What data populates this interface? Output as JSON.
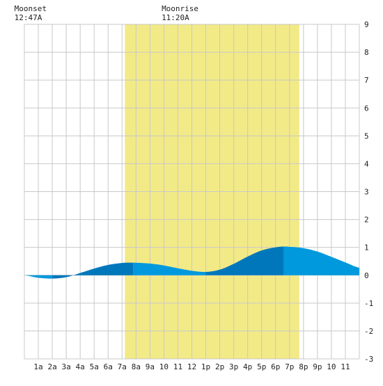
{
  "moon_events": [
    {
      "event": "Moonset",
      "time": "12:47A",
      "hour": 0.78
    },
    {
      "event": "Moonrise",
      "time": "11:20A",
      "hour": 11.33
    }
  ],
  "chart_data": {
    "type": "area",
    "title": "",
    "xlabel": "",
    "ylabel": "",
    "x_tick_labels": [
      "1a",
      "2a",
      "3a",
      "4a",
      "5a",
      "6a",
      "7a",
      "8a",
      "9a",
      "10",
      "11",
      "12",
      "1p",
      "2p",
      "3p",
      "4p",
      "5p",
      "6p",
      "7p",
      "8p",
      "9p",
      "10",
      "11"
    ],
    "xlim": [
      0,
      24
    ],
    "ylim": [
      -3,
      9
    ],
    "y_ticks": [
      -3,
      -2,
      -1,
      0,
      1,
      2,
      3,
      4,
      5,
      6,
      7,
      8,
      9
    ],
    "grid": true,
    "daylight": {
      "start_hour": 7.2,
      "end_hour": 19.7
    },
    "tide_extremes": [
      {
        "type": "low",
        "hour": 2.0,
        "height": -0.12
      },
      {
        "type": "high",
        "hour": 7.8,
        "height": 0.45
      },
      {
        "type": "low",
        "hour": 13.0,
        "height": 0.12
      },
      {
        "type": "high",
        "hour": 18.6,
        "height": 1.03
      }
    ],
    "series": [
      {
        "x": [
          0,
          1,
          2,
          3,
          4,
          5,
          6,
          7,
          7.8,
          9,
          10,
          11,
          12,
          13,
          14,
          15,
          16,
          17,
          18,
          18.6,
          19,
          20,
          21,
          22,
          23,
          24
        ],
        "values": [
          0,
          -0.09,
          -0.12,
          -0.07,
          0.08,
          0.24,
          0.37,
          0.44,
          0.45,
          0.42,
          0.35,
          0.25,
          0.16,
          0.12,
          0.2,
          0.41,
          0.67,
          0.89,
          1.0,
          1.03,
          1.02,
          0.97,
          0.85,
          0.66,
          0.46,
          0.27
        ]
      }
    ],
    "colors": {
      "daylight": "#f2ea87",
      "tide_light": "#0099dd",
      "tide_dark": "#0077bb",
      "grid": "#c8c8c8",
      "background": "#ffffff"
    }
  }
}
